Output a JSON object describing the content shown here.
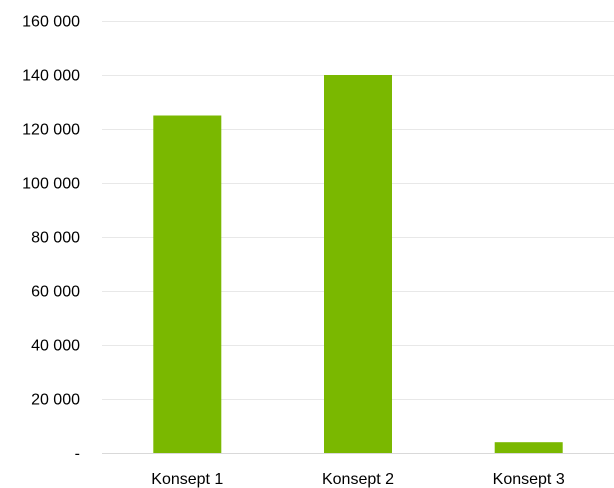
{
  "chart_data": {
    "type": "bar",
    "title": "",
    "xlabel": "",
    "ylabel": "",
    "categories": [
      "Konsept 1",
      "Konsept 2",
      "Konsept 3"
    ],
    "values": [
      125000,
      140000,
      4000
    ],
    "ylim": [
      0,
      160000
    ],
    "yticks": [
      0,
      20000,
      40000,
      60000,
      80000,
      100000,
      120000,
      140000,
      160000
    ],
    "ytick_labels": [
      "-",
      "20 000",
      "40 000",
      "60 000",
      "80 000",
      "100 000",
      "120 000",
      "140 000",
      "160 000"
    ],
    "grid": true,
    "legend": "none",
    "bar_color": "#7ab800",
    "grid_color": "#e8e8e8"
  }
}
